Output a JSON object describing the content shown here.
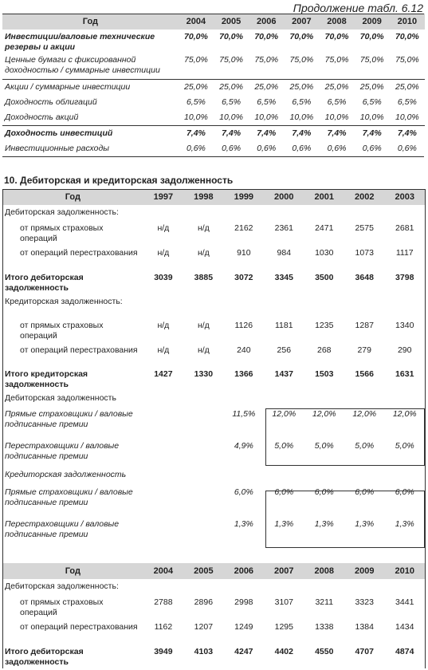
{
  "caption": "Продолжение табл. 6.12",
  "section_title": "10. Дебиторская и кредиторская задолженность",
  "table1": {
    "header": [
      "Год",
      "2004",
      "2005",
      "2006",
      "2007",
      "2008",
      "2009",
      "2010"
    ],
    "rows": [
      {
        "label": "Инвестиции/валовые технические резервы и акции",
        "values": [
          "70,0%",
          "70,0%",
          "70,0%",
          "70,0%",
          "70,0%",
          "70,0%",
          "70,0%"
        ]
      },
      {
        "label": "Ценные бумаги с фиксированной доходностью / суммарные инвестиции",
        "values": [
          "75,0%",
          "75,0%",
          "75,0%",
          "75,0%",
          "75,0%",
          "75,0%",
          "75,0%"
        ]
      },
      {
        "label": "Акции / суммарные инвестиции",
        "values": [
          "25,0%",
          "25,0%",
          "25,0%",
          "25,0%",
          "25,0%",
          "25,0%",
          "25,0%"
        ]
      },
      {
        "label": "Доходность облигаций",
        "values": [
          "6,5%",
          "6,5%",
          "6,5%",
          "6,5%",
          "6,5%",
          "6,5%",
          "6,5%"
        ]
      },
      {
        "label": "Доходность акций",
        "values": [
          "10,0%",
          "10,0%",
          "10,0%",
          "10,0%",
          "10,0%",
          "10,0%",
          "10,0%"
        ]
      },
      {
        "label": "Доходность инвестиций",
        "values": [
          "7,4%",
          "7,4%",
          "7,4%",
          "7,4%",
          "7,4%",
          "7,4%",
          "7,4%"
        ]
      },
      {
        "label": "Инвестиционные расходы",
        "values": [
          "0,6%",
          "0,6%",
          "0,6%",
          "0,6%",
          "0,6%",
          "0,6%",
          "0,6%"
        ]
      }
    ]
  },
  "table2": {
    "header": [
      "Год",
      "1997",
      "1998",
      "1999",
      "2000",
      "2001",
      "2002",
      "2003"
    ],
    "rows": [
      {
        "label": "Дебиторская задолженность:",
        "values": [
          "",
          "",
          "",
          "",
          "",
          "",
          ""
        ]
      },
      {
        "label": "от прямых страховых операций",
        "values": [
          "н/д",
          "н/д",
          "2162",
          "2361",
          "2471",
          "2575",
          "2681"
        ]
      },
      {
        "label": "от операций перестрахования",
        "values": [
          "н/д",
          "н/д",
          "910",
          "984",
          "1030",
          "1073",
          "1117"
        ]
      },
      {
        "label": "Итого дебиторская задолженность",
        "values": [
          "3039",
          "3885",
          "3072",
          "3345",
          "3500",
          "3648",
          "3798"
        ]
      },
      {
        "label": "Кредиторская задолженность:",
        "values": [
          "",
          "",
          "",
          "",
          "",
          "",
          ""
        ]
      },
      {
        "label": "от прямых страховых операций",
        "values": [
          "н/д",
          "н/д",
          "1126",
          "1181",
          "1235",
          "1287",
          "1340"
        ]
      },
      {
        "label": "от операций перестрахования",
        "values": [
          "н/д",
          "н/д",
          "240",
          "256",
          "268",
          "279",
          "290"
        ]
      },
      {
        "label": "Итого кредиторская задолженность",
        "values": [
          "1427",
          "1330",
          "1366",
          "1437",
          "1503",
          "1566",
          "1631"
        ]
      },
      {
        "label": "Дебиторская задолженность",
        "values": [
          "",
          "",
          "",
          "",
          "",
          "",
          ""
        ]
      },
      {
        "label": "Прямые страховщики / валовые подписанные премии",
        "values": [
          "",
          "",
          "11,5%",
          "12,0%",
          "12,0%",
          "12,0%",
          "12,0%"
        ]
      },
      {
        "label": "Перестраховщики / валовые подписанные премии",
        "values": [
          "",
          "",
          "4,9%",
          "5,0%",
          "5,0%",
          "5,0%",
          "5,0%"
        ]
      },
      {
        "label": "Кредиторская задолжен­ность",
        "values": [
          "",
          "",
          "",
          "",
          "",
          "",
          ""
        ]
      },
      {
        "label": "Прямые страховщики / валовые подписанные премии",
        "values": [
          "",
          "",
          "6,0%",
          "6,0%",
          "6,0%",
          "6,0%",
          "6,0%"
        ]
      },
      {
        "label": "Перестраховщики / валовые подписанные премии",
        "values": [
          "",
          "",
          "1,3%",
          "1,3%",
          "1,3%",
          "1,3%",
          "1,3%"
        ]
      }
    ]
  },
  "table3": {
    "header": [
      "Год",
      "2004",
      "2005",
      "2006",
      "2007",
      "2008",
      "2009",
      "2010"
    ],
    "rows": [
      {
        "label": "Дебиторская задолженность:",
        "values": [
          "",
          "",
          "",
          "",
          "",
          "",
          ""
        ]
      },
      {
        "label": "от прямых страховых операций",
        "values": [
          "2788",
          "2896",
          "2998",
          "3107",
          "3211",
          "3323",
          "3441"
        ]
      },
      {
        "label": "от операций перестра­хования",
        "values": [
          "1162",
          "1207",
          "1249",
          "1295",
          "1338",
          "1384",
          "1434"
        ]
      },
      {
        "label": "Итого дебиторская задолженность",
        "values": [
          "3949",
          "4103",
          "4247",
          "4402",
          "4550",
          "4707",
          "4874"
        ]
      }
    ]
  }
}
